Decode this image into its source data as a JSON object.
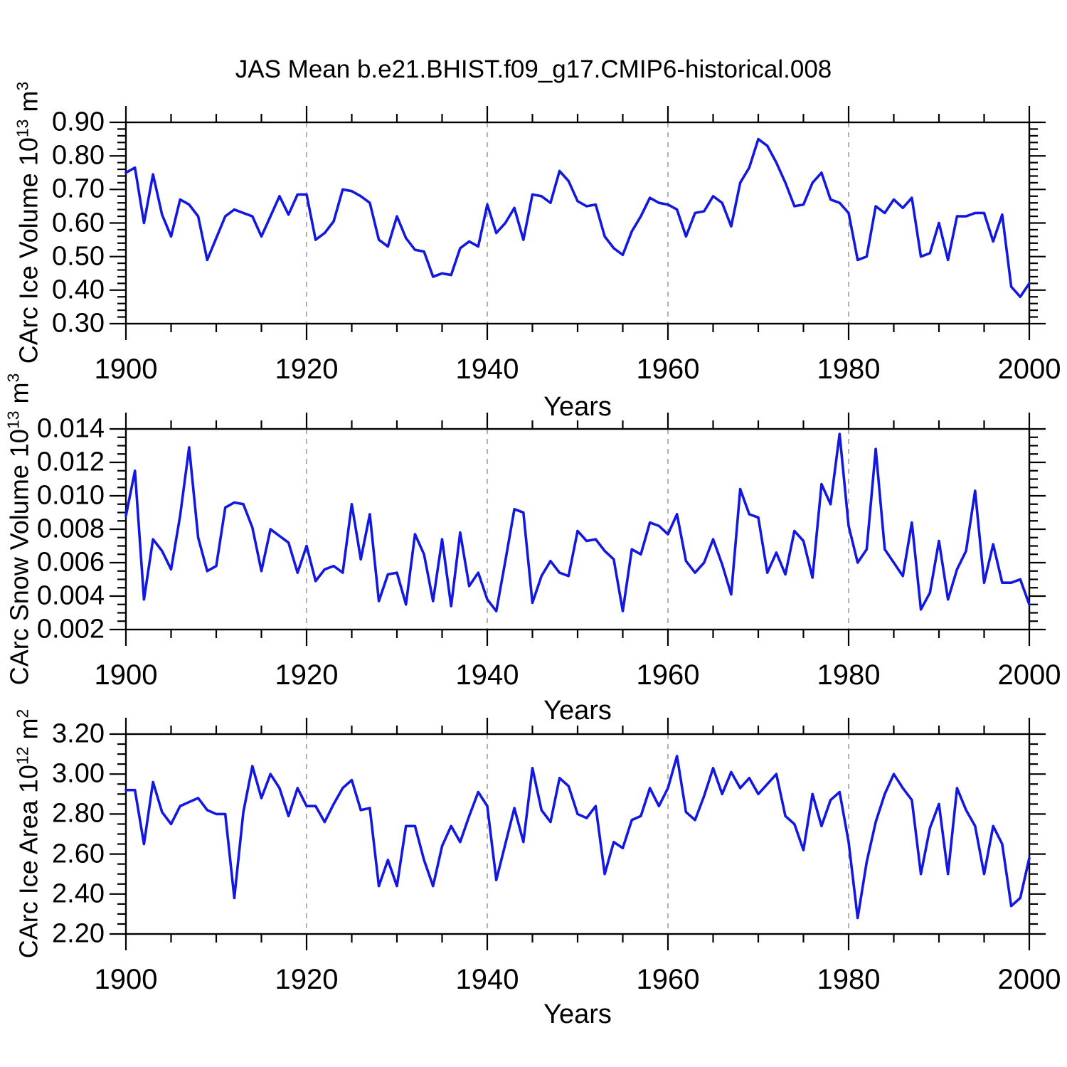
{
  "title": "JAS Mean b.e21.BHIST.f09_g17.CMIP6-historical.008",
  "line_color": "#1218DF",
  "frame_color": "#000000",
  "grid_color": "#999999",
  "chart_data": [
    {
      "type": "line",
      "ylabel": {
        "prefix": "CArc Ice Volume 10",
        "exp": "13",
        "unit": " m",
        "unit_exp": "3"
      },
      "xlabel": "Years",
      "x_start": 1900,
      "x_end": 2000,
      "x_step": 1,
      "xtick_labels": [
        "1900",
        "1920",
        "1940",
        "1960",
        "1980",
        "2000"
      ],
      "xtick_values": [
        1900,
        1920,
        1940,
        1960,
        1980,
        2000
      ],
      "x_minor_step": 5,
      "grid_x": [
        1920,
        1940,
        1960,
        1980
      ],
      "ylim": [
        0.3,
        0.9
      ],
      "ytick_labels": [
        "0.90",
        "0.80",
        "0.70",
        "0.60",
        "0.50",
        "0.40",
        "0.30"
      ],
      "ytick_values": [
        0.9,
        0.8,
        0.7,
        0.6,
        0.5,
        0.4,
        0.3
      ],
      "y_minor_step": 0.02,
      "legend": "none",
      "grid": "vertical-dashed",
      "values": [
        0.75,
        0.765,
        0.6,
        0.745,
        0.625,
        0.56,
        0.67,
        0.655,
        0.62,
        0.49,
        0.555,
        0.62,
        0.64,
        0.63,
        0.62,
        0.56,
        0.62,
        0.68,
        0.625,
        0.685,
        0.685,
        0.55,
        0.57,
        0.605,
        0.7,
        0.695,
        0.68,
        0.66,
        0.55,
        0.53,
        0.62,
        0.555,
        0.52,
        0.515,
        0.44,
        0.45,
        0.445,
        0.525,
        0.545,
        0.53,
        0.655,
        0.57,
        0.6,
        0.645,
        0.55,
        0.685,
        0.68,
        0.66,
        0.755,
        0.725,
        0.665,
        0.65,
        0.655,
        0.56,
        0.525,
        0.505,
        0.575,
        0.62,
        0.675,
        0.66,
        0.655,
        0.64,
        0.56,
        0.63,
        0.635,
        0.68,
        0.66,
        0.59,
        0.72,
        0.765,
        0.85,
        0.83,
        0.78,
        0.72,
        0.65,
        0.655,
        0.72,
        0.75,
        0.67,
        0.66,
        0.63,
        0.49,
        0.5,
        0.65,
        0.63,
        0.67,
        0.645,
        0.675,
        0.5,
        0.51,
        0.6,
        0.49,
        0.62,
        0.62,
        0.63,
        0.63,
        0.545,
        0.625,
        0.41,
        0.38,
        0.42
      ]
    },
    {
      "type": "line",
      "ylabel": {
        "prefix": "CArc Snow Volume 10",
        "exp": "13",
        "unit": " m",
        "unit_exp": "3"
      },
      "xlabel": "Years",
      "x_start": 1900,
      "x_end": 2000,
      "x_step": 1,
      "xtick_labels": [
        "1900",
        "1920",
        "1940",
        "1960",
        "1980",
        "2000"
      ],
      "xtick_values": [
        1900,
        1920,
        1940,
        1960,
        1980,
        2000
      ],
      "x_minor_step": 5,
      "grid_x": [
        1920,
        1940,
        1960,
        1980
      ],
      "ylim": [
        0.002,
        0.014
      ],
      "ytick_labels": [
        "0.014",
        "0.012",
        "0.010",
        "0.008",
        "0.006",
        "0.004",
        "0.002"
      ],
      "ytick_values": [
        0.014,
        0.012,
        0.01,
        0.008,
        0.006,
        0.004,
        0.002
      ],
      "y_minor_step": 0.0005,
      "legend": "none",
      "grid": "vertical-dashed",
      "values": [
        0.0088,
        0.0115,
        0.0038,
        0.0074,
        0.0067,
        0.0056,
        0.0088,
        0.0129,
        0.0075,
        0.0055,
        0.0058,
        0.0093,
        0.0096,
        0.0095,
        0.0081,
        0.0055,
        0.008,
        0.0076,
        0.0072,
        0.0054,
        0.007,
        0.0049,
        0.0056,
        0.0058,
        0.0054,
        0.0095,
        0.0062,
        0.0089,
        0.0037,
        0.0053,
        0.0054,
        0.0035,
        0.0077,
        0.0065,
        0.0037,
        0.0074,
        0.0034,
        0.0078,
        0.0046,
        0.0054,
        0.0038,
        0.0031,
        0.0061,
        0.0092,
        0.009,
        0.0036,
        0.0052,
        0.0061,
        0.0054,
        0.0052,
        0.0079,
        0.0073,
        0.0074,
        0.0067,
        0.0062,
        0.0031,
        0.0068,
        0.0065,
        0.0084,
        0.0082,
        0.0077,
        0.0089,
        0.0061,
        0.0054,
        0.006,
        0.0074,
        0.0059,
        0.0041,
        0.0104,
        0.0089,
        0.0087,
        0.0054,
        0.0066,
        0.0053,
        0.0079,
        0.0073,
        0.0051,
        0.0107,
        0.0095,
        0.0137,
        0.0082,
        0.006,
        0.0068,
        0.0128,
        0.0068,
        0.006,
        0.0052,
        0.0084,
        0.0032,
        0.0042,
        0.0073,
        0.0038,
        0.0056,
        0.0067,
        0.0103,
        0.0048,
        0.0071,
        0.0048,
        0.0048,
        0.005,
        0.0035
      ]
    },
    {
      "type": "line",
      "ylabel": {
        "prefix": "CArc Ice Area 10",
        "exp": "12",
        "unit": " m",
        "unit_exp": "2"
      },
      "xlabel": "Years",
      "x_start": 1900,
      "x_end": 2000,
      "x_step": 1,
      "xtick_labels": [
        "1900",
        "1920",
        "1940",
        "1960",
        "1980",
        "2000"
      ],
      "xtick_values": [
        1900,
        1920,
        1940,
        1960,
        1980,
        2000
      ],
      "x_minor_step": 5,
      "grid_x": [
        1920,
        1940,
        1960,
        1980
      ],
      "ylim": [
        2.2,
        3.2
      ],
      "ytick_labels": [
        "3.20",
        "3.00",
        "2.80",
        "2.60",
        "2.40",
        "2.20"
      ],
      "ytick_values": [
        3.2,
        3.0,
        2.8,
        2.6,
        2.4,
        2.2
      ],
      "y_minor_step": 0.05,
      "legend": "none",
      "grid": "vertical-dashed",
      "values": [
        2.92,
        2.92,
        2.65,
        2.96,
        2.81,
        2.75,
        2.84,
        2.86,
        2.88,
        2.82,
        2.8,
        2.8,
        2.38,
        2.81,
        3.04,
        2.88,
        3.0,
        2.93,
        2.79,
        2.93,
        2.84,
        2.84,
        2.76,
        2.85,
        2.93,
        2.97,
        2.82,
        2.83,
        2.44,
        2.57,
        2.44,
        2.74,
        2.74,
        2.57,
        2.44,
        2.64,
        2.74,
        2.66,
        2.79,
        2.91,
        2.84,
        2.47,
        2.65,
        2.83,
        2.66,
        3.03,
        2.82,
        2.76,
        2.98,
        2.94,
        2.8,
        2.78,
        2.84,
        2.5,
        2.66,
        2.63,
        2.77,
        2.79,
        2.93,
        2.84,
        2.93,
        3.09,
        2.81,
        2.77,
        2.89,
        3.03,
        2.9,
        3.01,
        2.93,
        2.98,
        2.9,
        2.95,
        3.0,
        2.79,
        2.75,
        2.62,
        2.9,
        2.74,
        2.87,
        2.91,
        2.66,
        2.28,
        2.56,
        2.76,
        2.9,
        3.0,
        2.93,
        2.87,
        2.5,
        2.73,
        2.85,
        2.5,
        2.93,
        2.82,
        2.74,
        2.5,
        2.74,
        2.65,
        2.34,
        2.38,
        2.58
      ]
    }
  ]
}
